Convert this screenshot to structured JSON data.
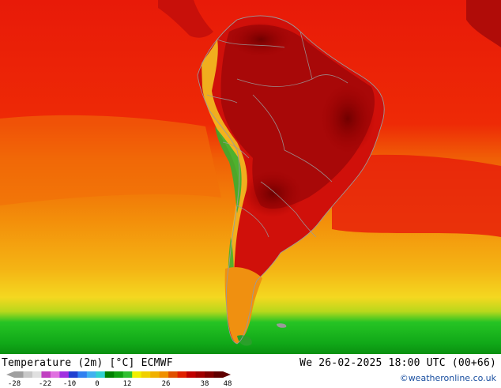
{
  "map": {
    "title": "Temperature (2m) [°C] ECMWF",
    "datetime": "We 26-02-2025 18:00 UTC (00+66)",
    "credit": "©weatheronline.co.uk"
  },
  "legend": {
    "ticks": [
      "-28",
      "-22",
      "-10",
      "0",
      "12",
      "26",
      "38",
      "48"
    ],
    "colors": [
      "#a0a0a0",
      "#c8c8c8",
      "#e0e0e0",
      "#c040c0",
      "#e070e0",
      "#a030e0",
      "#2040d0",
      "#3080f0",
      "#40b0f0",
      "#30d0d0",
      "#008000",
      "#10a010",
      "#30c030",
      "#f0f000",
      "#f0d000",
      "#f0b000",
      "#f09000",
      "#e05000",
      "#e02000",
      "#c00000",
      "#a00000",
      "#800000",
      "#600000"
    ]
  }
}
